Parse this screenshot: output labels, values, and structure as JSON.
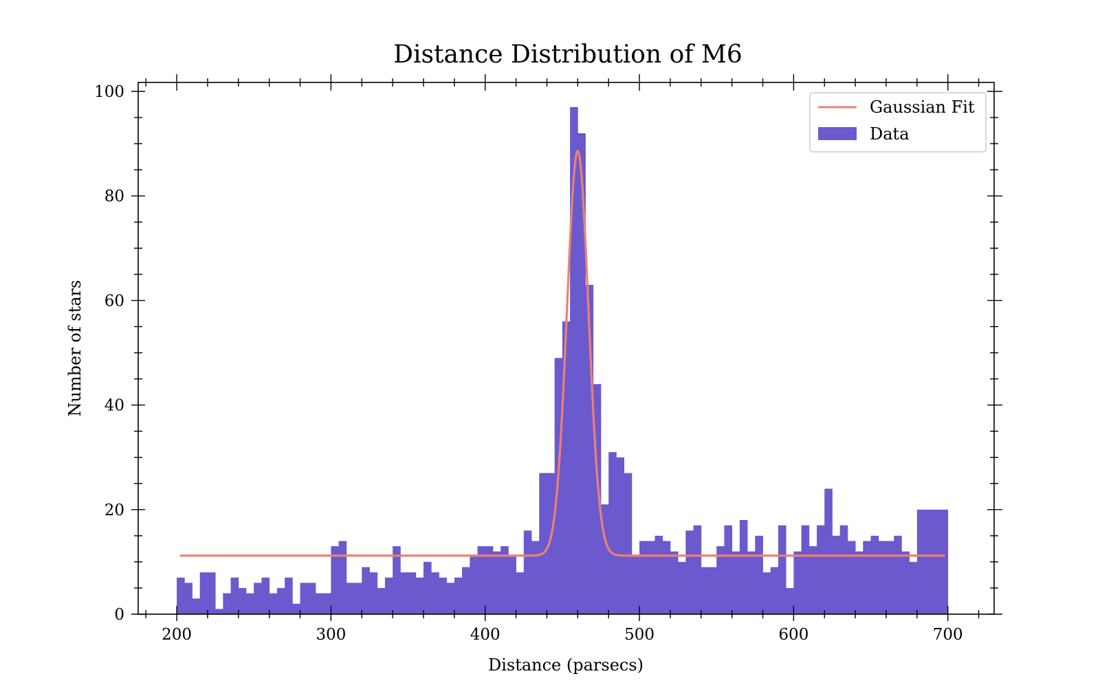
{
  "chart_data": {
    "type": "bar",
    "title": "Distance Distribution of M6",
    "xlabel": "Distance (parsecs)",
    "ylabel": "Number of stars",
    "xlim": [
      175,
      730
    ],
    "ylim": [
      0,
      100
    ],
    "xticks": [
      200,
      300,
      400,
      500,
      600,
      700
    ],
    "xtick_labels": [
      "200",
      "300",
      "400",
      "500",
      "600",
      "700"
    ],
    "yticks": [
      0,
      20,
      40,
      60,
      80,
      100
    ],
    "ytick_labels": [
      "0",
      "20",
      "40",
      "60",
      "80",
      "100"
    ],
    "legend_position": "top-right",
    "colors": {
      "histogram": "#6a5acd",
      "fit": "#f07f72"
    },
    "histogram": {
      "name": "Data",
      "bin_start": 200,
      "bin_width": 5,
      "counts": [
        7,
        6,
        3,
        8,
        8,
        1,
        4,
        7,
        5,
        4,
        6,
        7,
        4,
        5,
        7,
        2,
        6,
        6,
        4,
        4,
        13,
        14,
        6,
        6,
        9,
        8,
        5,
        7,
        13,
        8,
        8,
        7,
        10,
        8,
        7,
        6,
        7,
        9,
        11,
        13,
        13,
        12,
        13,
        11,
        8,
        16,
        14,
        27,
        27,
        49,
        56,
        97,
        92,
        63,
        44,
        21,
        31,
        30,
        27,
        11,
        14,
        14,
        15,
        14,
        12,
        10,
        16,
        17,
        9,
        9,
        13,
        17,
        12,
        18,
        12,
        15,
        8,
        9,
        17,
        5,
        12,
        17,
        13,
        17,
        24,
        15,
        17,
        14,
        12,
        14,
        15,
        14,
        14,
        15,
        12,
        10,
        20,
        20,
        20,
        20
      ]
    },
    "gaussian_fit": {
      "name": "Gaussian Fit",
      "baseline": 11.2,
      "amplitude": 77.4,
      "mean": 460,
      "sigma": 7,
      "x_range": [
        202,
        698
      ]
    },
    "legend": [
      "Gaussian Fit",
      "Data"
    ]
  }
}
